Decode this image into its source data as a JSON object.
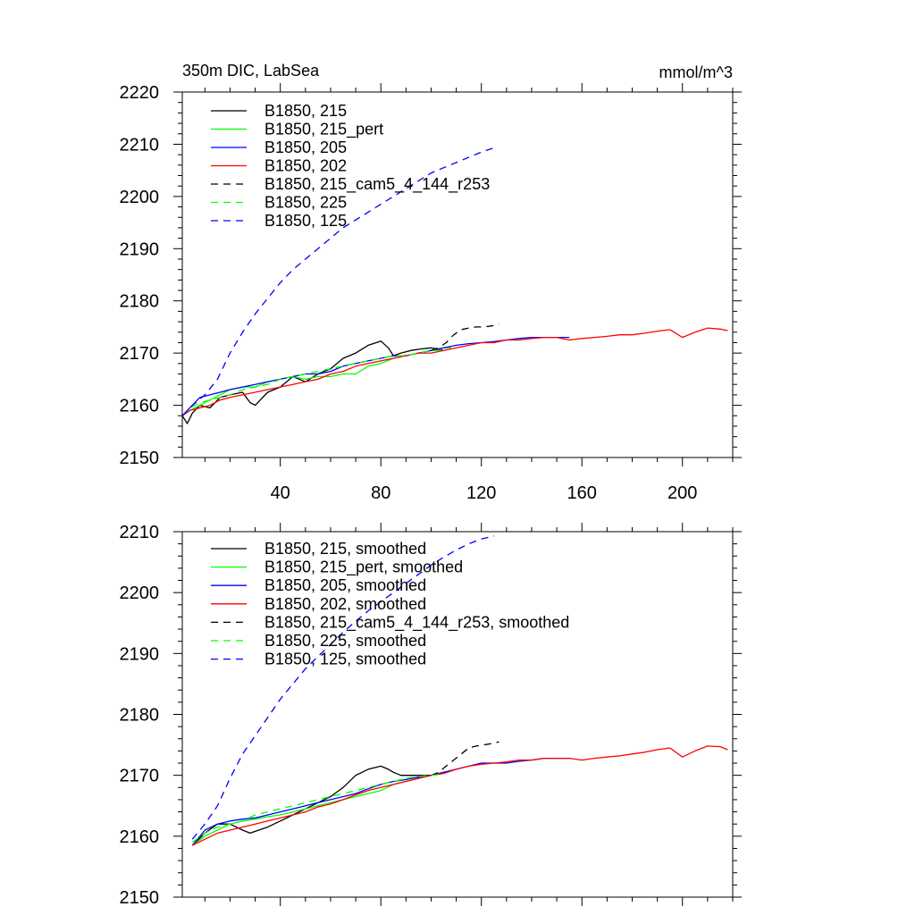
{
  "chart_data": [
    {
      "id": "top",
      "type": "line",
      "title": "350m DIC, LabSea",
      "units": "mmol/m^3",
      "xlim": [
        1,
        220
      ],
      "ylim": [
        2150,
        2220
      ],
      "xticks": [
        40,
        80,
        120,
        160,
        200
      ],
      "xtick_labels": [
        "40",
        "80",
        "120",
        "160",
        "200"
      ],
      "yticks": [
        2150,
        2160,
        2170,
        2180,
        2190,
        2200,
        2210,
        2220
      ],
      "ytick_labels": [
        "2150",
        "2160",
        "2170",
        "2180",
        "2190",
        "2200",
        "2210",
        "2220"
      ],
      "legend_position": "top-left",
      "series": [
        {
          "name": "B1850, 215",
          "color": "#000000",
          "dash": "solid",
          "x": [
            1,
            3,
            5,
            8,
            12,
            16,
            20,
            25,
            28,
            30,
            35,
            40,
            45,
            50,
            55,
            60,
            65,
            70,
            75,
            80,
            83,
            85,
            88,
            92,
            96,
            100,
            105
          ],
          "y": [
            2158,
            2156.5,
            2158.5,
            2160,
            2159.5,
            2161.5,
            2162,
            2162.5,
            2160.5,
            2160,
            2162.5,
            2163.5,
            2165.5,
            2164.5,
            2166,
            2167,
            2169,
            2170,
            2171.5,
            2172.3,
            2171,
            2169.5,
            2170,
            2170.5,
            2170.8,
            2171,
            2170.5
          ]
        },
        {
          "name": "B1850, 215_pert",
          "color": "#00ff00",
          "dash": "solid",
          "x": [
            1,
            4,
            8,
            12,
            16,
            20,
            25,
            30,
            35,
            40,
            45,
            50,
            55,
            60,
            65,
            70,
            75,
            80,
            85,
            90,
            95,
            100,
            105,
            108
          ],
          "y": [
            2158,
            2159,
            2160,
            2161,
            2162,
            2163,
            2163.5,
            2163.5,
            2164.5,
            2165,
            2165.5,
            2165,
            2165.5,
            2165.5,
            2166,
            2166,
            2167.5,
            2168,
            2169,
            2169.5,
            2170,
            2170.5,
            2171,
            2171
          ]
        },
        {
          "name": "B1850, 205",
          "color": "#0000ff",
          "dash": "solid",
          "x": [
            1,
            4,
            8,
            12,
            16,
            20,
            25,
            30,
            35,
            40,
            45,
            50,
            55,
            60,
            65,
            70,
            75,
            80,
            85,
            90,
            95,
            100,
            105,
            110,
            115,
            120,
            125,
            130,
            135,
            140,
            145,
            150,
            155
          ],
          "y": [
            2158,
            2159.5,
            2161.5,
            2162,
            2162.5,
            2163,
            2163.5,
            2164,
            2164.5,
            2165,
            2165.5,
            2166,
            2166,
            2166.5,
            2167.5,
            2168,
            2168.5,
            2169,
            2169.5,
            2169.5,
            2170,
            2170.5,
            2171,
            2171.5,
            2171.8,
            2172,
            2172.2,
            2172.5,
            2172.8,
            2173,
            2173,
            2173,
            2173
          ]
        },
        {
          "name": "B1850, 202",
          "color": "#ff0000",
          "dash": "solid",
          "x": [
            1,
            4,
            8,
            12,
            16,
            20,
            25,
            30,
            35,
            40,
            45,
            50,
            55,
            60,
            65,
            70,
            75,
            80,
            85,
            90,
            95,
            100,
            105,
            110,
            115,
            120,
            125,
            130,
            135,
            140,
            145,
            150,
            155,
            160,
            165,
            170,
            175,
            180,
            185,
            190,
            195,
            200,
            205,
            210,
            215,
            218
          ],
          "y": [
            2158,
            2159,
            2159.5,
            2160,
            2161,
            2161.5,
            2162,
            2162.5,
            2163,
            2163.5,
            2164,
            2164.5,
            2165,
            2166,
            2166.5,
            2167.5,
            2168,
            2168.5,
            2169,
            2169.5,
            2170,
            2170,
            2170.5,
            2171,
            2171.5,
            2172,
            2172,
            2172.5,
            2172.5,
            2172.8,
            2173,
            2173,
            2172.5,
            2172.8,
            2173,
            2173.2,
            2173.5,
            2173.5,
            2173.8,
            2174.2,
            2174.5,
            2173,
            2174,
            2174.8,
            2174.6,
            2174.3
          ]
        },
        {
          "name": "B1850, 215_cam5_4_144_r253",
          "color": "#000000",
          "dash": "dashed",
          "x": [
            100,
            103,
            106,
            109,
            112,
            115,
            118,
            121,
            124,
            127
          ],
          "y": [
            2170.5,
            2171,
            2172,
            2173.5,
            2174.5,
            2174.8,
            2175,
            2175,
            2175.2,
            2175.5
          ]
        },
        {
          "name": "B1850, 225",
          "color": "#00ff00",
          "dash": "dashed",
          "x": [
            1,
            4,
            8,
            12,
            16,
            20,
            25,
            30,
            35,
            40,
            45,
            50,
            55,
            60,
            65,
            70,
            75,
            80,
            85,
            90,
            95,
            100,
            105
          ],
          "y": [
            2158,
            2159.5,
            2160.5,
            2161,
            2161.5,
            2162,
            2163,
            2163.5,
            2164,
            2165,
            2165.5,
            2166,
            2166.5,
            2167,
            2167.5,
            2168,
            2168.5,
            2169,
            2169.5,
            2169.5,
            2170,
            2170.5,
            2170.5
          ]
        },
        {
          "name": "B1850, 125",
          "color": "#0000ff",
          "dash": "dashed",
          "x": [
            1,
            5,
            10,
            15,
            20,
            25,
            30,
            35,
            40,
            45,
            50,
            55,
            60,
            65,
            70,
            75,
            80,
            85,
            90,
            95,
            100,
            105,
            110,
            115,
            120,
            125
          ],
          "y": [
            2158,
            2160,
            2162,
            2165,
            2170,
            2174,
            2177.5,
            2180.5,
            2183.5,
            2186,
            2188,
            2190,
            2192,
            2194,
            2195.5,
            2197,
            2198.5,
            2200,
            2201.5,
            2203,
            2204.5,
            2205.5,
            2206.5,
            2207.5,
            2208.5,
            2209.3
          ]
        }
      ]
    },
    {
      "id": "bottom",
      "type": "line",
      "title": "",
      "units": "",
      "xlim": [
        1,
        220
      ],
      "ylim": [
        2150,
        2210
      ],
      "xticks": [
        40,
        80,
        120,
        160,
        200
      ],
      "xtick_labels": [],
      "yticks": [
        2150,
        2160,
        2170,
        2180,
        2190,
        2200,
        2210
      ],
      "ytick_labels": [
        "2150",
        "2160",
        "2170",
        "2180",
        "2190",
        "2200",
        "2210"
      ],
      "legend_position": "top-left",
      "series": [
        {
          "name": "B1850, 215, smoothed",
          "color": "#000000",
          "dash": "solid",
          "x": [
            5,
            10,
            15,
            20,
            25,
            28,
            30,
            35,
            40,
            45,
            50,
            55,
            60,
            65,
            70,
            75,
            80,
            83,
            85,
            88,
            90,
            95,
            100
          ],
          "y": [
            2158.5,
            2160.5,
            2162,
            2162,
            2161,
            2160.5,
            2160.8,
            2161.5,
            2162.5,
            2163.5,
            2164.5,
            2165.5,
            2166.5,
            2168,
            2170,
            2171,
            2171.5,
            2171,
            2170.5,
            2170,
            2170,
            2170,
            2170
          ]
        },
        {
          "name": "B1850, 215_pert, smoothed",
          "color": "#00ff00",
          "dash": "solid",
          "x": [
            5,
            10,
            15,
            20,
            25,
            30,
            35,
            40,
            45,
            50,
            55,
            60,
            65,
            70,
            75,
            80,
            85,
            90,
            95,
            100,
            105
          ],
          "y": [
            2158.5,
            2160,
            2161,
            2162,
            2162.5,
            2162.8,
            2163.2,
            2163.5,
            2164,
            2164.5,
            2165,
            2165.5,
            2166,
            2166.5,
            2167,
            2167.5,
            2168.5,
            2169,
            2169.5,
            2170,
            2170.5
          ]
        },
        {
          "name": "B1850, 205, smoothed",
          "color": "#0000ff",
          "dash": "solid",
          "x": [
            5,
            10,
            15,
            20,
            25,
            30,
            35,
            40,
            45,
            50,
            55,
            60,
            65,
            70,
            75,
            80,
            85,
            90,
            95,
            100,
            105,
            110,
            115,
            120,
            125,
            130,
            135,
            140,
            145,
            150,
            155
          ],
          "y": [
            2158.5,
            2161,
            2162,
            2162.5,
            2162.8,
            2163,
            2163.5,
            2164,
            2164.5,
            2165,
            2165.5,
            2166,
            2166.5,
            2167,
            2167.8,
            2168.5,
            2169,
            2169.3,
            2169.7,
            2170,
            2170.5,
            2171,
            2171.5,
            2172,
            2172,
            2172,
            2172.3,
            2172.5,
            2172.8,
            2172.8,
            2172.8
          ]
        },
        {
          "name": "B1850, 202, smoothed",
          "color": "#ff0000",
          "dash": "solid",
          "x": [
            5,
            10,
            15,
            20,
            25,
            30,
            35,
            40,
            45,
            50,
            55,
            60,
            65,
            70,
            75,
            80,
            85,
            90,
            95,
            100,
            105,
            110,
            115,
            120,
            125,
            130,
            135,
            140,
            145,
            150,
            155,
            160,
            165,
            170,
            175,
            180,
            185,
            190,
            195,
            200,
            205,
            210,
            215,
            218
          ],
          "y": [
            2158.5,
            2159.5,
            2160.5,
            2161,
            2161.5,
            2162,
            2162.5,
            2163,
            2163.5,
            2164,
            2164.8,
            2165.3,
            2166,
            2166.8,
            2167.5,
            2168,
            2168.5,
            2169,
            2169.5,
            2170,
            2170.3,
            2171,
            2171.5,
            2171.8,
            2172,
            2172.2,
            2172.5,
            2172.5,
            2172.8,
            2172.8,
            2172.8,
            2172.5,
            2172.8,
            2173,
            2173.2,
            2173.5,
            2173.8,
            2174.2,
            2174.5,
            2173,
            2174,
            2174.8,
            2174.7,
            2174.2
          ]
        },
        {
          "name": "B1850, 215_cam5_4_144_r253, smoothed",
          "color": "#000000",
          "dash": "dashed",
          "x": [
            100,
            103,
            106,
            109,
            112,
            115,
            118,
            121,
            124,
            127
          ],
          "y": [
            2170,
            2170.5,
            2171.5,
            2172.5,
            2173.5,
            2174.5,
            2174.8,
            2175,
            2175.2,
            2175.5
          ]
        },
        {
          "name": "B1850, 225, smoothed",
          "color": "#00ff00",
          "dash": "dashed",
          "x": [
            5,
            10,
            15,
            20,
            25,
            30,
            35,
            40,
            45,
            50,
            55,
            60,
            65,
            70,
            75,
            80,
            85,
            90,
            95,
            100,
            105
          ],
          "y": [
            2159,
            2160.5,
            2161.5,
            2162,
            2162.5,
            2163.5,
            2164,
            2164.5,
            2165,
            2165.5,
            2166,
            2166.5,
            2167,
            2167.5,
            2168,
            2168.5,
            2169,
            2169.5,
            2169.8,
            2170,
            2170.2
          ]
        },
        {
          "name": "B1850, 125, smoothed",
          "color": "#0000ff",
          "dash": "dashed",
          "x": [
            5,
            10,
            15,
            20,
            25,
            30,
            35,
            40,
            45,
            50,
            55,
            60,
            65,
            70,
            75,
            80,
            85,
            90,
            95,
            100,
            105,
            110,
            115,
            120,
            125
          ],
          "y": [
            2159.5,
            2162,
            2165,
            2169.5,
            2173.5,
            2176.5,
            2179.5,
            2182.5,
            2185,
            2187.5,
            2189.5,
            2191.5,
            2193.5,
            2195.3,
            2197,
            2198.5,
            2200,
            2201.5,
            2203,
            2204.5,
            2205.8,
            2207,
            2208,
            2208.8,
            2209.3
          ]
        }
      ]
    }
  ]
}
